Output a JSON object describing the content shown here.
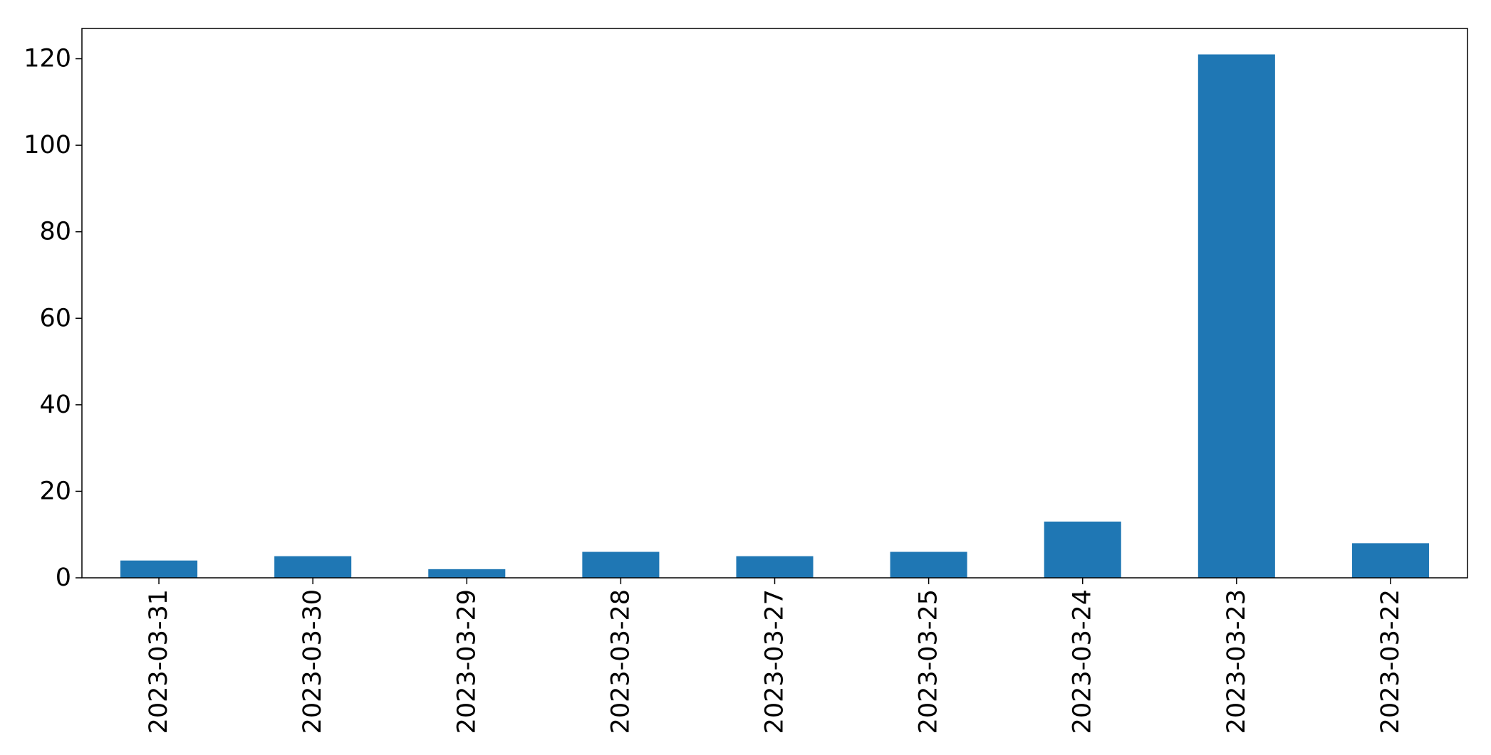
{
  "chart_data": {
    "type": "bar",
    "title": "",
    "xlabel": "",
    "ylabel": "",
    "categories": [
      "2023-03-31",
      "2023-03-30",
      "2023-03-29",
      "2023-03-28",
      "2023-03-27",
      "2023-03-25",
      "2023-03-24",
      "2023-03-23",
      "2023-03-22"
    ],
    "values": [
      4,
      5,
      2,
      6,
      5,
      6,
      13,
      121,
      8
    ],
    "ylim": [
      0,
      127
    ],
    "yticks": [
      0,
      20,
      40,
      60,
      80,
      100,
      120
    ],
    "grid": false,
    "legend": "none",
    "bar_color": "#1f77b4"
  }
}
